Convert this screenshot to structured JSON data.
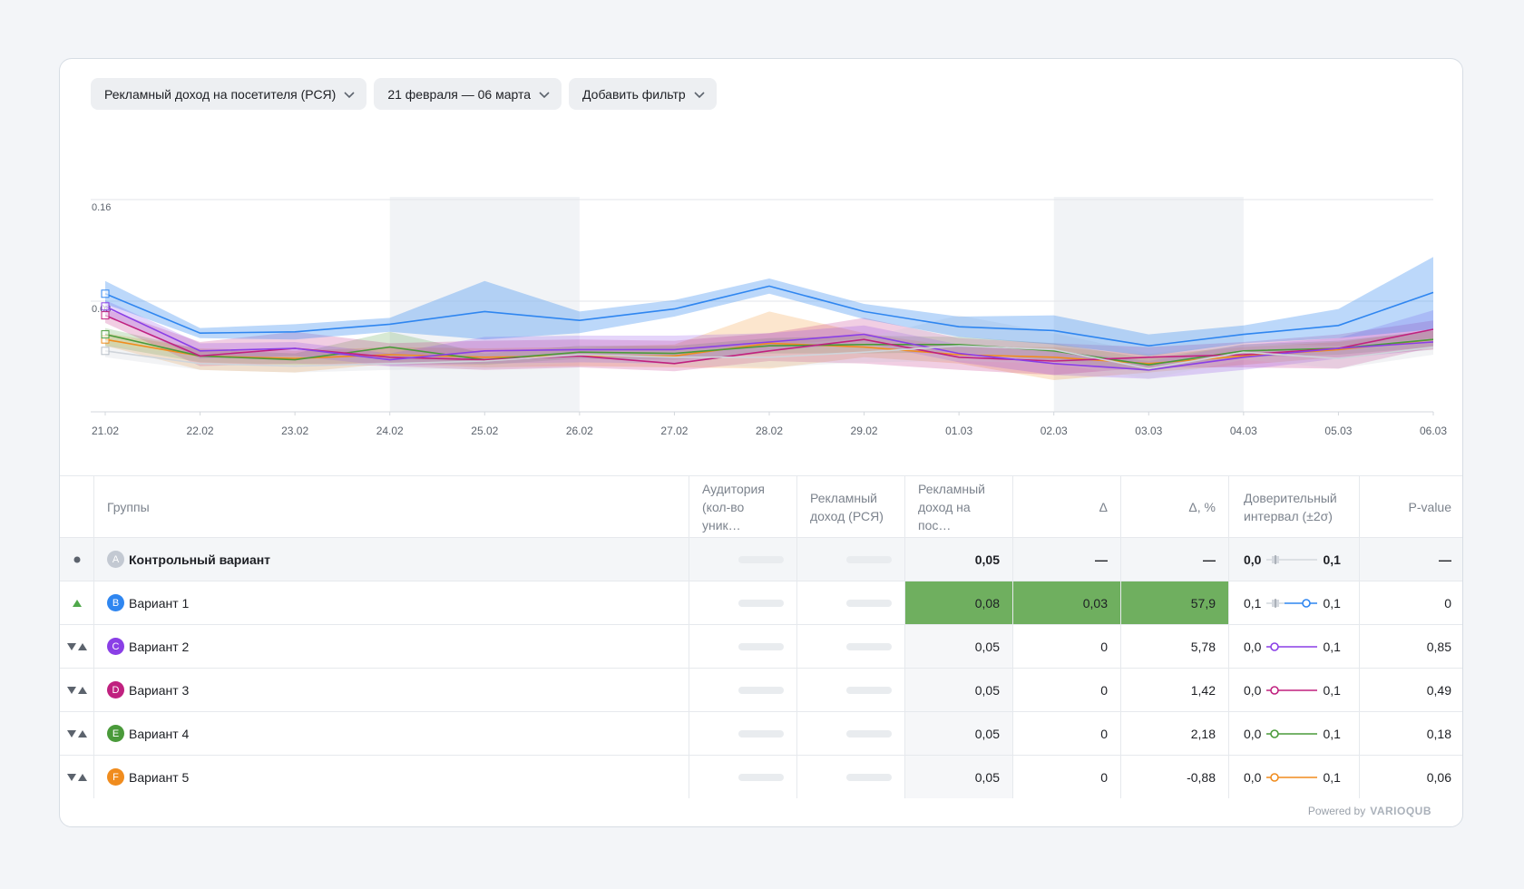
{
  "filters": {
    "metric": "Рекламный доход на посетителя (РСЯ)",
    "date_range": "21 февраля — 06 марта",
    "add_filter": "Добавить фильтр"
  },
  "colors": {
    "A": "#c3c9d2",
    "B": "#2f86f0",
    "C": "#8a3fe6",
    "D": "#c0217f",
    "E": "#4a9a3a",
    "F": "#f08c1e",
    "weekend": "#f1f3f6",
    "significant": "#6faf5f"
  },
  "chart_data": {
    "type": "line",
    "x": [
      "21.02",
      "22.02",
      "23.02",
      "24.02",
      "25.02",
      "26.02",
      "27.02",
      "28.02",
      "29.02",
      "01.03",
      "02.03",
      "03.03",
      "04.03",
      "05.03",
      "06.03"
    ],
    "y_ticks": [
      "0.16",
      "0.08"
    ],
    "ylim": [
      0,
      0.16
    ],
    "weekend_shading": [
      [
        "24.02",
        "26.02"
      ],
      [
        "02.03",
        "04.03"
      ]
    ],
    "grid": true,
    "series": [
      {
        "key": "A",
        "values": [
          0.048,
          0.038,
          0.036,
          0.038,
          0.04,
          0.045,
          0.043,
          0.043,
          0.047,
          0.052,
          0.049,
          0.034,
          0.047,
          0.042,
          0.051
        ],
        "upper": [
          0.053,
          0.044,
          0.042,
          0.044,
          0.047,
          0.051,
          0.049,
          0.052,
          0.058,
          0.076,
          0.062,
          0.046,
          0.054,
          0.052,
          0.058
        ],
        "lower": [
          0.043,
          0.033,
          0.031,
          0.033,
          0.034,
          0.039,
          0.037,
          0.035,
          0.039,
          0.04,
          0.038,
          0.026,
          0.041,
          0.034,
          0.045
        ]
      },
      {
        "key": "B",
        "values": [
          0.093,
          0.062,
          0.063,
          0.069,
          0.079,
          0.072,
          0.081,
          0.099,
          0.079,
          0.067,
          0.064,
          0.052,
          0.061,
          0.068,
          0.094
        ],
        "upper": [
          0.103,
          0.066,
          0.069,
          0.074,
          0.103,
          0.079,
          0.088,
          0.105,
          0.085,
          0.075,
          0.076,
          0.061,
          0.068,
          0.081,
          0.122
        ],
        "lower": [
          0.085,
          0.058,
          0.057,
          0.063,
          0.057,
          0.062,
          0.075,
          0.093,
          0.073,
          0.059,
          0.053,
          0.044,
          0.054,
          0.058,
          0.065
        ]
      },
      {
        "key": "C",
        "values": [
          0.083,
          0.048,
          0.05,
          0.041,
          0.048,
          0.049,
          0.049,
          0.055,
          0.061,
          0.046,
          0.038,
          0.033,
          0.043,
          0.05,
          0.055
        ],
        "upper": [
          0.088,
          0.054,
          0.055,
          0.046,
          0.059,
          0.06,
          0.06,
          0.062,
          0.068,
          0.053,
          0.048,
          0.04,
          0.053,
          0.058,
          0.08
        ],
        "lower": [
          0.076,
          0.042,
          0.044,
          0.036,
          0.038,
          0.039,
          0.038,
          0.048,
          0.054,
          0.039,
          0.029,
          0.026,
          0.033,
          0.042,
          0.049
        ]
      },
      {
        "key": "D",
        "values": [
          0.076,
          0.044,
          0.05,
          0.043,
          0.041,
          0.044,
          0.038,
          0.048,
          0.057,
          0.043,
          0.04,
          0.043,
          0.045,
          0.05,
          0.065
        ],
        "upper": [
          0.081,
          0.055,
          0.063,
          0.054,
          0.056,
          0.057,
          0.056,
          0.062,
          0.074,
          0.058,
          0.054,
          0.051,
          0.055,
          0.061,
          0.072
        ],
        "lower": [
          0.07,
          0.036,
          0.038,
          0.036,
          0.033,
          0.035,
          0.032,
          0.04,
          0.038,
          0.033,
          0.029,
          0.035,
          0.035,
          0.034,
          0.051
        ]
      },
      {
        "key": "E",
        "values": [
          0.061,
          0.044,
          0.041,
          0.051,
          0.041,
          0.047,
          0.046,
          0.052,
          0.053,
          0.053,
          0.048,
          0.037,
          0.048,
          0.05,
          0.057
        ],
        "upper": [
          0.066,
          0.049,
          0.046,
          0.063,
          0.046,
          0.052,
          0.052,
          0.058,
          0.06,
          0.059,
          0.054,
          0.042,
          0.053,
          0.056,
          0.064
        ],
        "lower": [
          0.052,
          0.039,
          0.037,
          0.039,
          0.037,
          0.042,
          0.041,
          0.046,
          0.046,
          0.047,
          0.04,
          0.032,
          0.043,
          0.045,
          0.051
        ]
      },
      {
        "key": "F",
        "values": [
          0.057,
          0.044,
          0.042,
          0.045,
          0.043,
          0.044,
          0.044,
          0.054,
          0.051,
          0.045,
          0.043,
          0.038,
          0.044,
          0.049,
          0.057
        ],
        "upper": [
          0.062,
          0.05,
          0.048,
          0.051,
          0.05,
          0.051,
          0.053,
          0.079,
          0.062,
          0.051,
          0.051,
          0.045,
          0.051,
          0.055,
          0.064
        ],
        "lower": [
          0.052,
          0.033,
          0.031,
          0.038,
          0.035,
          0.036,
          0.035,
          0.034,
          0.043,
          0.038,
          0.025,
          0.031,
          0.037,
          0.043,
          0.049
        ]
      }
    ]
  },
  "table": {
    "headers": {
      "groups": "Группы",
      "audience_1": "Аудитория",
      "audience_2": "(кол-во уник…",
      "revenue_1": "Рекламный",
      "revenue_2": "доход (РСЯ)",
      "rpv_1": "Рекламный",
      "rpv_2": "доход на пос…",
      "delta": "Δ",
      "delta_pct": "Δ, %",
      "ci_1": "Доверительный",
      "ci_2": "интервал (±2σ)",
      "pvalue": "P-value"
    },
    "rows": [
      {
        "letter": "A",
        "name": "Контрольный вариант",
        "rpv": "0,05",
        "delta": "—",
        "delta_pct": "—",
        "ci_low": "0,0",
        "ci_high": "0,1",
        "pvalue": "—",
        "mark": "dot",
        "significant": false
      },
      {
        "letter": "B",
        "name": "Вариант 1",
        "rpv": "0,08",
        "delta": "0,03",
        "delta_pct": "57,9",
        "ci_low": "0,1",
        "ci_high": "0,1",
        "pvalue": "0",
        "mark": "up",
        "significant": true
      },
      {
        "letter": "C",
        "name": "Вариант 2",
        "rpv": "0,05",
        "delta": "0",
        "delta_pct": "5,78",
        "ci_low": "0,0",
        "ci_high": "0,1",
        "pvalue": "0,85",
        "mark": "both",
        "significant": false
      },
      {
        "letter": "D",
        "name": "Вариант 3",
        "rpv": "0,05",
        "delta": "0",
        "delta_pct": "1,42",
        "ci_low": "0,0",
        "ci_high": "0,1",
        "pvalue": "0,49",
        "mark": "both",
        "significant": false
      },
      {
        "letter": "E",
        "name": "Вариант 4",
        "rpv": "0,05",
        "delta": "0",
        "delta_pct": "2,18",
        "ci_low": "0,0",
        "ci_high": "0,1",
        "pvalue": "0,18",
        "mark": "both",
        "significant": false
      },
      {
        "letter": "F",
        "name": "Вариант 5",
        "rpv": "0,05",
        "delta": "0",
        "delta_pct": "-0,88",
        "ci_low": "0,0",
        "ci_high": "0,1",
        "pvalue": "0,06",
        "mark": "both",
        "significant": false
      }
    ]
  },
  "footer": {
    "powered_by": "Powered by",
    "brand": "VARIOQUB"
  }
}
